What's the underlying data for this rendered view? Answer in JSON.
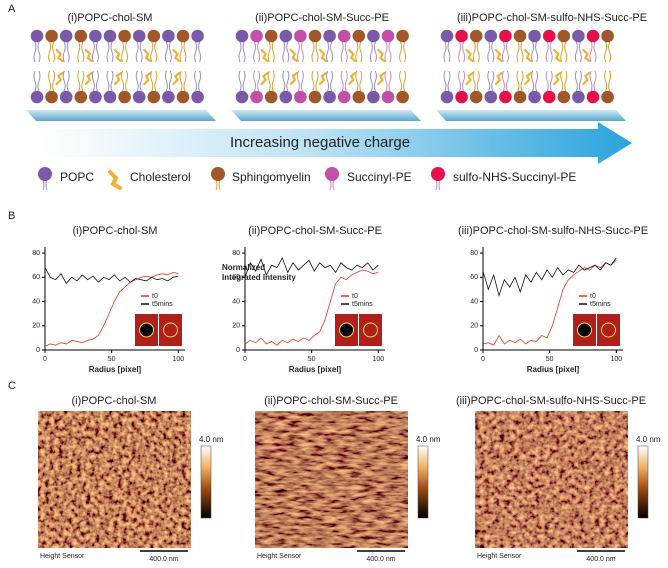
{
  "panel_a": {
    "label": "A",
    "titles": [
      "(i)POPC-chol-SM",
      "(ii)POPC-chol-SM-Succ-PE",
      "(iii)POPC-chol-SM-sulfo-NHS-Succ-PE"
    ],
    "arrow_text": "Increasing negative charge",
    "legend": [
      "POPC",
      "Cholesterol",
      "Sphingomyelin",
      "Succinyl-PE",
      "sulfo-NHS-Succinyl-PE"
    ]
  },
  "panel_b": {
    "label": "B",
    "y_label": "Normalized Integrated Intensity",
    "x_label": "Radius [pixel]"
  },
  "chart_data": [
    {
      "type": "line",
      "title": "(i)POPC-chol-SM",
      "x": [
        0,
        4,
        8,
        12,
        16,
        20,
        24,
        28,
        32,
        36,
        40,
        44,
        48,
        52,
        56,
        60,
        64,
        68,
        72,
        76,
        80,
        84,
        88,
        92,
        96,
        100
      ],
      "series": [
        {
          "name": "t0",
          "color": "#e03a1e",
          "values": [
            3,
            5,
            4,
            6,
            5,
            8,
            7,
            6,
            8,
            9,
            12,
            20,
            30,
            40,
            48,
            52,
            56,
            58,
            60,
            61,
            60,
            62,
            63,
            62,
            64,
            63
          ]
        },
        {
          "name": "t5mins",
          "color": "#111111",
          "values": [
            68,
            60,
            58,
            63,
            55,
            60,
            57,
            62,
            58,
            61,
            56,
            60,
            58,
            62,
            57,
            60,
            56,
            59,
            58,
            57,
            60,
            58,
            59,
            57,
            60,
            61
          ]
        }
      ],
      "xlim": [
        0,
        105
      ],
      "xticks": [
        0,
        50,
        100
      ],
      "ylim": [
        0,
        85
      ],
      "yticks": [
        0,
        20,
        40,
        60,
        80
      ]
    },
    {
      "type": "line",
      "title": "(ii)POPC-chol-SM-Succ-PE",
      "x": [
        0,
        4,
        8,
        12,
        16,
        20,
        24,
        28,
        32,
        36,
        40,
        44,
        48,
        52,
        56,
        60,
        64,
        68,
        72,
        76,
        80,
        84,
        88,
        92,
        96,
        100
      ],
      "series": [
        {
          "name": "t0",
          "color": "#e03a1e",
          "values": [
            5,
            8,
            6,
            10,
            5,
            7,
            4,
            8,
            6,
            9,
            7,
            10,
            8,
            12,
            15,
            25,
            40,
            55,
            60,
            58,
            62,
            64,
            66,
            65,
            63,
            64
          ]
        },
        {
          "name": "t5mins",
          "color": "#111111",
          "values": [
            60,
            72,
            65,
            75,
            62,
            70,
            68,
            76,
            64,
            72,
            66,
            70,
            74,
            65,
            72,
            68,
            70,
            64,
            72,
            68,
            66,
            70,
            68,
            72,
            66,
            70
          ]
        }
      ],
      "xlim": [
        0,
        105
      ],
      "xticks": [
        0,
        50,
        100
      ],
      "ylim": [
        0,
        85
      ],
      "yticks": [
        0,
        20,
        40,
        60,
        80
      ]
    },
    {
      "type": "line",
      "title": "(iii)POPC-chol-SM-sulfo-NHS-Succ-PE",
      "x": [
        0,
        4,
        8,
        12,
        16,
        20,
        24,
        28,
        32,
        36,
        40,
        44,
        48,
        52,
        56,
        60,
        64,
        68,
        72,
        76,
        80,
        84,
        88,
        92,
        96,
        100
      ],
      "series": [
        {
          "name": "t0",
          "color": "#e03a1e",
          "values": [
            5,
            6,
            4,
            12,
            5,
            8,
            6,
            9,
            5,
            8,
            7,
            12,
            10,
            20,
            35,
            50,
            58,
            62,
            65,
            68,
            66,
            70,
            68,
            72,
            70,
            74
          ]
        },
        {
          "name": "t5mins",
          "color": "#111111",
          "values": [
            65,
            50,
            62,
            45,
            58,
            52,
            60,
            48,
            62,
            56,
            64,
            58,
            66,
            60,
            68,
            62,
            66,
            64,
            70,
            66,
            68,
            70,
            66,
            72,
            70,
            76
          ]
        }
      ],
      "xlim": [
        0,
        105
      ],
      "xticks": [
        0,
        50,
        100
      ],
      "ylim": [
        0,
        85
      ],
      "yticks": [
        0,
        20,
        40,
        60,
        80
      ]
    }
  ],
  "panel_c": {
    "label": "C",
    "titles": [
      "(i)POPC-chol-SM",
      "(ii)POPC-chol-SM-Succ-PE",
      "(iii)POPC-chol-SM-sulfo-NHS-Succ-PE"
    ],
    "colorbar_label": "4.0 nm",
    "sensor_label": "Height Sensor",
    "scale_label": "400.0 nm"
  }
}
